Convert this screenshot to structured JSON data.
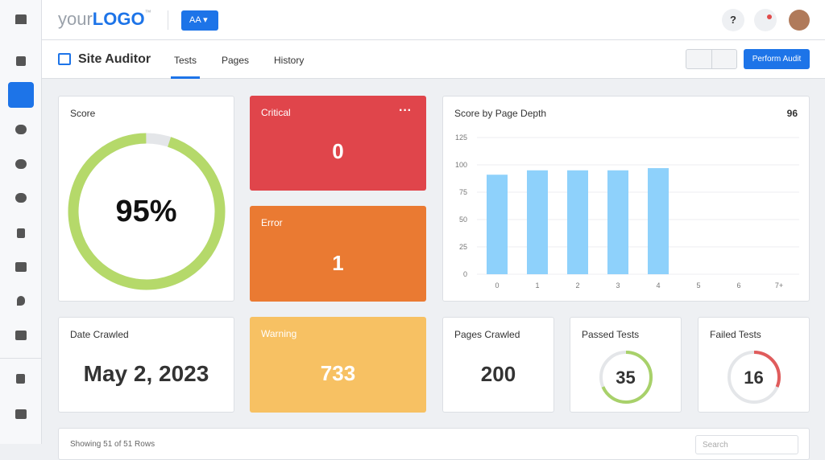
{
  "header": {
    "logo": "your",
    "logo_bold": "LOGO",
    "logo_tm": "™",
    "account": "AA",
    "help": "?"
  },
  "toolbar": {
    "title": "Site Auditor",
    "tabs": [
      "Tests",
      "Pages",
      "History"
    ],
    "active_tab": 0,
    "button": "Perform Audit"
  },
  "score": {
    "label": "Score",
    "value": 95,
    "value_label": "95%",
    "color": "#b5d96a"
  },
  "critical": {
    "label": "Critical",
    "value": 0
  },
  "error": {
    "label": "Error",
    "value": 1
  },
  "warning": {
    "label": "Warning",
    "value": 733
  },
  "depth_chart": {
    "type": "bar",
    "title": "Score by Page Depth",
    "total": 96,
    "categories": [
      "0",
      "1",
      "2",
      "3",
      "4",
      "5",
      "6",
      "7+"
    ],
    "values": [
      91,
      95,
      95,
      95,
      97,
      null,
      null,
      null
    ],
    "color": "#8ed1fb",
    "ylim": [
      0,
      125
    ],
    "yticks": [
      0,
      25,
      50,
      75,
      100,
      125
    ],
    "grid": true
  },
  "date_crawled": {
    "label": "Date Crawled",
    "value": "May 2, 2023"
  },
  "pages_crawled": {
    "label": "Pages Crawled",
    "value": 200
  },
  "passed_tests": {
    "label": "Passed Tests",
    "value": 35,
    "color": "#a8d16a"
  },
  "failed_tests": {
    "label": "Failed Tests",
    "value": 16,
    "color": "#e05c5c"
  },
  "table": {
    "summary": "Showing 51 of 51 Rows",
    "search": "Search"
  }
}
